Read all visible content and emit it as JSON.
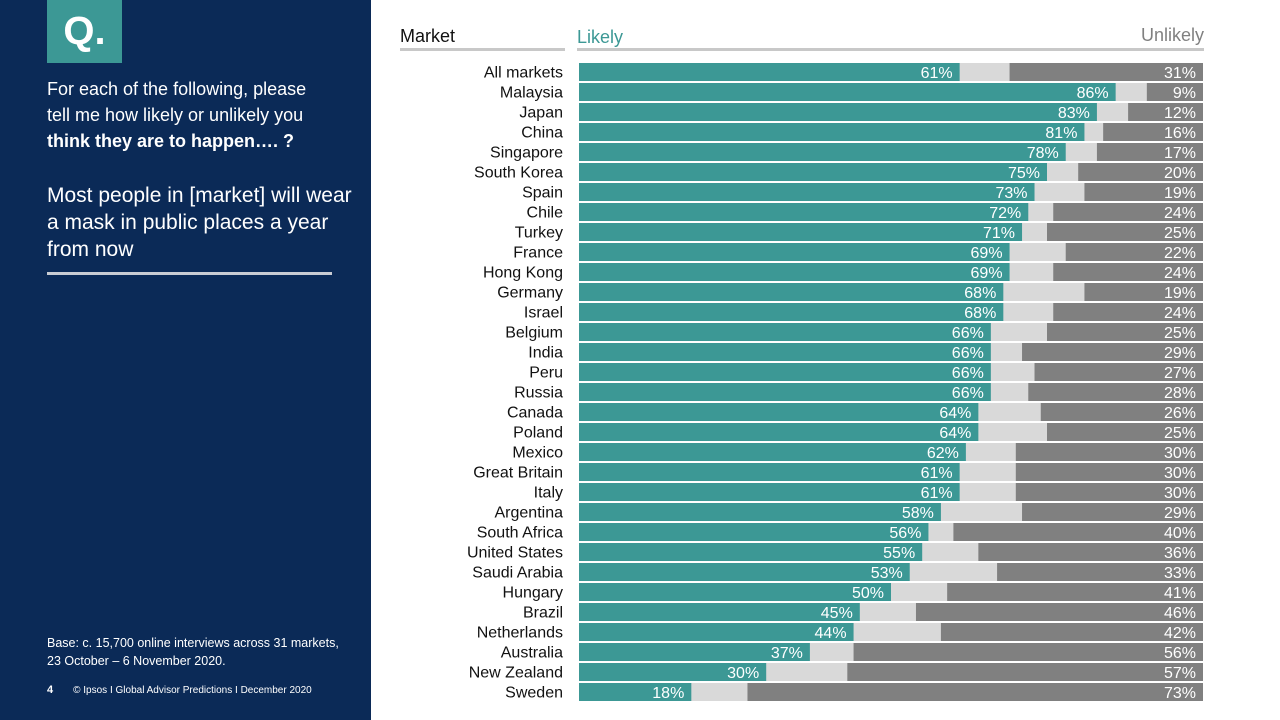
{
  "sidebar": {
    "q_label": "Q.",
    "question_line1": "For each of the following, please",
    "question_line2": "tell me how likely or unlikely you",
    "question_line3": "think they are to happen…. ?",
    "statement": "Most people in [market] will wear a mask in public places a year from now",
    "base": "Base: c. 15,700 online interviews across 31 markets,  23 October – 6 November 2020.",
    "page_number": "4",
    "footer": "© Ipsos I Global Advisor Predictions I December 2020"
  },
  "colors": {
    "sidebar_bg": "#0b2a57",
    "accent": "#3c9895",
    "likely": "#3c9895",
    "neutral": "#d9d9d9",
    "unlikely": "#808080"
  },
  "chart_data": {
    "type": "bar",
    "orientation": "horizontal-stacked-100",
    "column_header": "Market",
    "legend_likely": "Likely",
    "legend_unlikely": "Unlikely",
    "categories": [
      "All markets",
      "Malaysia",
      "Japan",
      "China",
      "Singapore",
      "South Korea",
      "Spain",
      "Chile",
      "Turkey",
      "France",
      "Hong Kong",
      "Germany",
      "Israel",
      "Belgium",
      "India",
      "Peru",
      "Russia",
      "Canada",
      "Poland",
      "Mexico",
      "Great Britain",
      "Italy",
      "Argentina",
      "South Africa",
      "United States",
      "Saudi Arabia",
      "Hungary",
      "Brazil",
      "Netherlands",
      "Australia",
      "New Zealand",
      "Sweden"
    ],
    "series": [
      {
        "name": "Likely",
        "values": [
          61,
          86,
          83,
          81,
          78,
          75,
          73,
          72,
          71,
          69,
          69,
          68,
          68,
          66,
          66,
          66,
          66,
          64,
          64,
          62,
          61,
          61,
          58,
          56,
          55,
          53,
          50,
          45,
          44,
          37,
          30,
          18
        ]
      },
      {
        "name": "Unlikely",
        "values": [
          31,
          9,
          12,
          16,
          17,
          20,
          19,
          24,
          25,
          22,
          24,
          19,
          24,
          25,
          29,
          27,
          28,
          26,
          25,
          30,
          30,
          30,
          29,
          40,
          36,
          33,
          41,
          46,
          42,
          56,
          57,
          73
        ]
      }
    ],
    "xlim": [
      0,
      100
    ]
  }
}
